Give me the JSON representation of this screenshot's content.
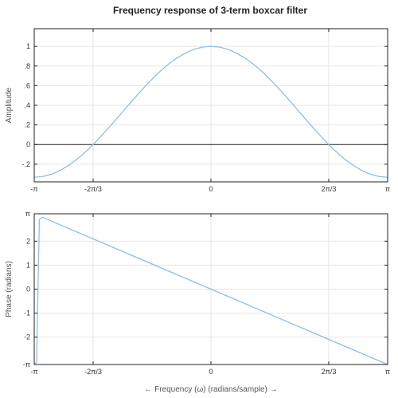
{
  "title": "Frequency response of 3-term boxcar filter",
  "chart_data": [
    {
      "type": "line",
      "id": "amplitude",
      "ylabel": "Amplitude",
      "xlabel": "",
      "xlim": [
        -3.14159,
        3.14159
      ],
      "ylim": [
        -0.38,
        1.18
      ],
      "x_ticks": [
        {
          "value": -3.14159,
          "label": "-π"
        },
        {
          "value": -2.0944,
          "label": "-2π/3"
        },
        {
          "value": 0,
          "label": "0"
        },
        {
          "value": 2.0944,
          "label": "2π/3"
        },
        {
          "value": 3.14159,
          "label": "π"
        }
      ],
      "y_ticks": [
        {
          "value": -0.2,
          "label": "-.2"
        },
        {
          "value": 0,
          "label": "0"
        },
        {
          "value": 0.2,
          "label": ".2"
        },
        {
          "value": 0.4,
          "label": ".4"
        },
        {
          "value": 0.6,
          "label": ".6"
        },
        {
          "value": 0.8,
          "label": ".8"
        },
        {
          "value": 1,
          "label": "1"
        }
      ],
      "grid": true,
      "zero_line": true,
      "color": "#8fbfe0",
      "series": [
        {
          "x": [
            -3.1416,
            -2.9845,
            -2.8274,
            -2.6704,
            -2.5133,
            -2.3562,
            -2.1991,
            -2.042,
            -1.885,
            -1.7279,
            -1.5708,
            -1.4137,
            -1.2566,
            -1.0996,
            -0.9425,
            -0.7854,
            -0.6283,
            -0.4712,
            -0.3142,
            -0.1571,
            0,
            0.1571,
            0.3142,
            0.4712,
            0.6283,
            0.7854,
            0.9425,
            1.0996,
            1.2566,
            1.4137,
            1.5708,
            1.7279,
            1.885,
            2.042,
            2.1991,
            2.3562,
            2.5133,
            2.6704,
            2.8274,
            2.9845,
            3.1416
          ],
          "values": [
            -0.333,
            -0.325,
            -0.301,
            -0.261,
            -0.206,
            -0.138,
            -0.059,
            0.031,
            0.128,
            0.229,
            0.333,
            0.438,
            0.539,
            0.636,
            0.725,
            0.805,
            0.873,
            0.926,
            0.968,
            0.992,
            1.0,
            0.992,
            0.968,
            0.926,
            0.873,
            0.805,
            0.725,
            0.636,
            0.539,
            0.438,
            0.333,
            0.229,
            0.128,
            0.031,
            -0.059,
            -0.138,
            -0.206,
            -0.261,
            -0.301,
            -0.325,
            -0.333
          ]
        }
      ]
    },
    {
      "type": "line",
      "id": "phase",
      "ylabel": "Phase (radians)",
      "xlabel": "← Frequency (ω) (radians/sample) →",
      "xlim": [
        -3.14159,
        3.14159
      ],
      "ylim": [
        -3.14159,
        3.14159
      ],
      "x_ticks": [
        {
          "value": -3.14159,
          "label": "-π"
        },
        {
          "value": -2.0944,
          "label": "-2π/3"
        },
        {
          "value": 0,
          "label": "0"
        },
        {
          "value": 2.0944,
          "label": "2π/3"
        },
        {
          "value": 3.14159,
          "label": "π"
        }
      ],
      "y_ticks": [
        {
          "value": -3.14159,
          "label": "-π"
        },
        {
          "value": -2,
          "label": "-2"
        },
        {
          "value": -1,
          "label": "-1"
        },
        {
          "value": 0,
          "label": "0"
        },
        {
          "value": 1,
          "label": "1"
        },
        {
          "value": 2,
          "label": "2"
        },
        {
          "value": 3.14159,
          "label": "π"
        }
      ],
      "grid": true,
      "zero_line": false,
      "color": "#8fbfe0",
      "series": [
        {
          "x": [
            -3.1416,
            -3.1,
            -3.05,
            -3.0,
            0,
            3.1416
          ],
          "values": [
            -3.1416,
            -3.05,
            2.9,
            3.0,
            0,
            -3.1416
          ]
        }
      ]
    }
  ]
}
